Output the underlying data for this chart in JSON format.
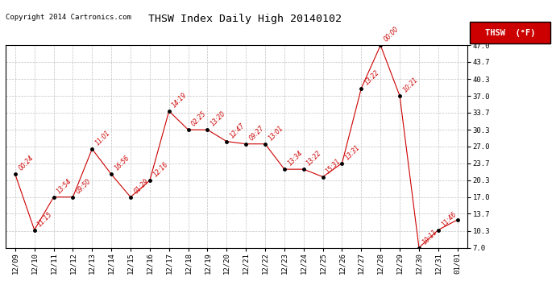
{
  "title": "THSW Index Daily High 20140102",
  "copyright": "Copyright 2014 Cartronics.com",
  "legend_label": "THSW  (°F)",
  "legend_bg": "#cc0000",
  "line_color": "#cc0000",
  "marker_color": "#000000",
  "background_color": "#ffffff",
  "grid_color": "#bbbbbb",
  "x_labels": [
    "12/09",
    "12/10",
    "12/11",
    "12/12",
    "12/13",
    "12/14",
    "12/15",
    "12/16",
    "12/17",
    "12/18",
    "12/19",
    "12/20",
    "12/21",
    "12/22",
    "12/23",
    "12/24",
    "12/25",
    "12/26",
    "12/27",
    "12/28",
    "12/29",
    "12/30",
    "12/31",
    "01/01"
  ],
  "y_values": [
    21.5,
    10.5,
    17.0,
    17.0,
    26.5,
    21.5,
    17.0,
    20.3,
    34.0,
    30.3,
    30.3,
    28.0,
    27.5,
    27.5,
    22.5,
    22.5,
    21.0,
    23.7,
    38.5,
    47.0,
    37.0,
    7.0,
    10.5,
    12.5
  ],
  "time_labels": [
    "00:24",
    "11:15",
    "13:54",
    "09:50",
    "11:01",
    "16:56",
    "01:29",
    "12:16",
    "14:19",
    "02:25",
    "13:20",
    "12:47",
    "09:27",
    "13:01",
    "13:34",
    "13:22",
    "15:31",
    "13:31",
    "13:22",
    "00:00",
    "10:21",
    "10:11",
    "11:46",
    ""
  ],
  "ylim": [
    7.0,
    47.0
  ],
  "yticks": [
    7.0,
    10.3,
    13.7,
    17.0,
    20.3,
    23.7,
    27.0,
    30.3,
    33.7,
    37.0,
    40.3,
    43.7,
    47.0
  ]
}
